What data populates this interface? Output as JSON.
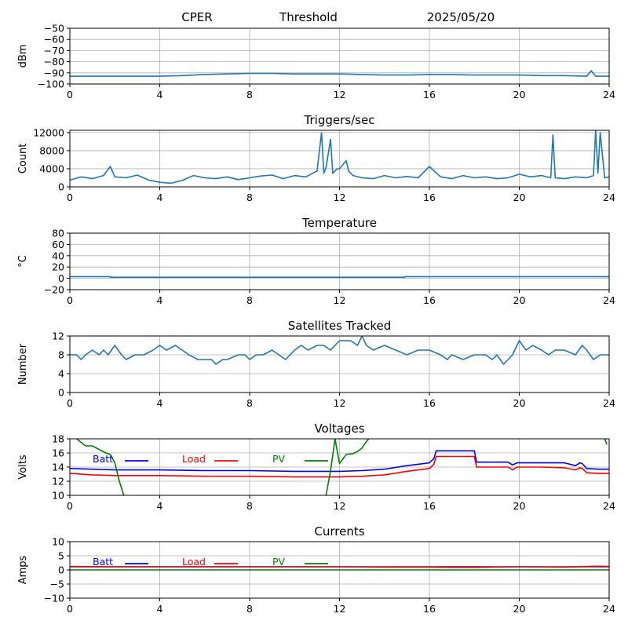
{
  "header": {
    "station": "CPER",
    "mode": "Threshold",
    "date": "2025/05/20"
  },
  "colors": {
    "series_default": "#1f77b4",
    "batt": "#0000ff",
    "load": "#ff0000",
    "pv": "#008000",
    "grid": "#b0b0b0"
  },
  "chart_data": [
    {
      "id": "threshold",
      "type": "line",
      "title": "",
      "ylabel": "dBm",
      "xlim": [
        0,
        24
      ],
      "xticks": [
        0,
        4,
        8,
        12,
        16,
        20,
        24
      ],
      "ylim": [
        -100,
        -50
      ],
      "yticks": [
        -100,
        -90,
        -80,
        -70,
        -60,
        -50
      ],
      "grid": true,
      "series": [
        {
          "color": "#1f77b4",
          "x": [
            0,
            1,
            2,
            3,
            4,
            5,
            6,
            7,
            8,
            9,
            10,
            11,
            12,
            13,
            14,
            15,
            16,
            17,
            18,
            19,
            20,
            21,
            22,
            23,
            23.2,
            23.4,
            23.6,
            24
          ],
          "y": [
            -93,
            -93,
            -93,
            -93,
            -93,
            -92.5,
            -91.5,
            -91,
            -90.5,
            -90.5,
            -91,
            -91,
            -91,
            -91.5,
            -92,
            -92,
            -91.5,
            -91.5,
            -92,
            -92,
            -92,
            -92.5,
            -92.5,
            -93,
            -88,
            -93,
            -93,
            -93
          ]
        }
      ]
    },
    {
      "id": "triggers",
      "type": "line",
      "title": "Triggers/sec",
      "ylabel": "Count",
      "xlim": [
        0,
        24
      ],
      "xticks": [
        0,
        4,
        8,
        12,
        16,
        20,
        24
      ],
      "ylim": [
        0,
        12500
      ],
      "yticks": [
        0,
        4000,
        8000,
        12000
      ],
      "grid": true,
      "series": [
        {
          "color": "#1f77b4",
          "x": [
            0,
            0.5,
            1,
            1.5,
            1.8,
            2,
            2.5,
            3,
            3.5,
            4,
            4.5,
            5,
            5.5,
            6,
            6.5,
            7,
            7.5,
            8,
            8.5,
            9,
            9.5,
            10,
            10.5,
            11,
            11.2,
            11.3,
            11.4,
            11.6,
            11.7,
            11.9,
            12,
            12.3,
            12.4,
            12.6,
            13,
            13.5,
            14,
            14.5,
            15,
            15.5,
            16,
            16.5,
            17,
            17.5,
            18,
            18.5,
            19,
            19.5,
            20,
            20.5,
            21,
            21.4,
            21.5,
            21.6,
            22,
            22.5,
            23,
            23.3,
            23.4,
            23.5,
            23.6,
            23.8,
            24
          ],
          "y": [
            1500,
            2200,
            1800,
            2500,
            4500,
            2200,
            2000,
            2600,
            1500,
            1000,
            800,
            1400,
            2500,
            2000,
            1800,
            2200,
            1600,
            2000,
            2400,
            2600,
            1800,
            2500,
            2200,
            3500,
            12000,
            3000,
            4200,
            10500,
            3000,
            4000,
            4000,
            5800,
            3500,
            2500,
            2000,
            1800,
            2500,
            2000,
            2300,
            2000,
            4500,
            2200,
            1800,
            2500,
            2000,
            2200,
            1800,
            2000,
            2800,
            2200,
            2500,
            2000,
            11500,
            2000,
            1800,
            2200,
            2000,
            2500,
            12500,
            3000,
            12000,
            2000,
            2200
          ]
        }
      ]
    },
    {
      "id": "temperature",
      "type": "line",
      "title": "Temperature",
      "ylabel": "°C",
      "xlim": [
        0,
        24
      ],
      "xticks": [
        0,
        4,
        8,
        12,
        16,
        20,
        24
      ],
      "ylim": [
        -20,
        80
      ],
      "yticks": [
        -20,
        0,
        20,
        40,
        60,
        80
      ],
      "grid": true,
      "series": [
        {
          "color": "#1f77b4",
          "x": [
            0,
            1.8,
            1.8,
            14.9,
            14.9,
            24
          ],
          "y": [
            3,
            3,
            2,
            2,
            3,
            3
          ]
        }
      ]
    },
    {
      "id": "satellites",
      "type": "line",
      "title": "Satellites Tracked",
      "ylabel": "Number",
      "xlim": [
        0,
        24
      ],
      "xticks": [
        0,
        4,
        8,
        12,
        16,
        20,
        24
      ],
      "ylim": [
        0,
        12
      ],
      "yticks": [
        0,
        4,
        8,
        12
      ],
      "grid": true,
      "series": [
        {
          "color": "#1f77b4",
          "x": [
            0,
            0.3,
            0.5,
            0.7,
            1,
            1.3,
            1.5,
            1.7,
            2,
            2.3,
            2.5,
            2.9,
            3.3,
            3.7,
            4,
            4.3,
            4.7,
            5,
            5.3,
            5.7,
            6,
            6.3,
            6.5,
            6.8,
            7,
            7.5,
            7.8,
            8,
            8.3,
            8.6,
            9,
            9.3,
            9.6,
            10,
            10.3,
            10.6,
            11,
            11.3,
            11.6,
            12,
            12.5,
            12.8,
            13,
            13.2,
            13.5,
            14,
            14.5,
            15,
            15.5,
            16,
            16.5,
            16.8,
            17,
            17.5,
            18,
            18.5,
            18.8,
            19,
            19.3,
            19.7,
            20,
            20.3,
            20.6,
            21,
            21.3,
            21.6,
            22,
            22.5,
            22.8,
            23,
            23.3,
            23.6,
            24
          ],
          "y": [
            8,
            8,
            7,
            8,
            9,
            8,
            9,
            8,
            10,
            8,
            7,
            8,
            8,
            9,
            10,
            9,
            10,
            9,
            8,
            7,
            7,
            7,
            6,
            7,
            7,
            8,
            8,
            7,
            8,
            8,
            9,
            8,
            7,
            9,
            10,
            9,
            10,
            10,
            9,
            11,
            11,
            10,
            12,
            10,
            9,
            10,
            9,
            8,
            9,
            9,
            8,
            7,
            8,
            7,
            8,
            8,
            7,
            8,
            6,
            8,
            11,
            9,
            10,
            9,
            8,
            9,
            9,
            8,
            10,
            9,
            7,
            8,
            8
          ]
        }
      ]
    },
    {
      "id": "voltages",
      "type": "line",
      "title": "Voltages",
      "ylabel": "Volts",
      "xlim": [
        0,
        24
      ],
      "xticks": [
        0,
        4,
        8,
        12,
        16,
        20,
        24
      ],
      "ylim": [
        10,
        18
      ],
      "yticks": [
        10,
        12,
        14,
        16,
        18
      ],
      "grid": true,
      "legend": [
        "Batt",
        "Load",
        "PV"
      ],
      "series": [
        {
          "name": "Batt",
          "color": "#0000ff",
          "x": [
            0,
            1,
            2,
            3,
            4,
            6,
            8,
            10,
            12,
            13,
            14,
            15,
            15.5,
            16,
            16.2,
            16.3,
            17,
            18,
            18.1,
            19,
            19.5,
            19.7,
            19.9,
            20,
            21,
            22,
            22.5,
            22.7,
            22.8,
            23,
            23.5,
            24
          ],
          "y": [
            13.8,
            13.7,
            13.6,
            13.6,
            13.6,
            13.5,
            13.5,
            13.4,
            13.4,
            13.5,
            13.7,
            14.2,
            14.4,
            14.6,
            15.2,
            16.3,
            16.3,
            16.3,
            14.7,
            14.7,
            14.7,
            14.3,
            14.6,
            14.6,
            14.6,
            14.6,
            14.2,
            14.6,
            14.5,
            13.8,
            13.7,
            13.7
          ]
        },
        {
          "name": "Load",
          "color": "#ff0000",
          "x": [
            0,
            1,
            2,
            3,
            4,
            6,
            8,
            10,
            12,
            13,
            14,
            15,
            15.5,
            16,
            16.2,
            16.3,
            17,
            18,
            18.1,
            19,
            19.5,
            19.7,
            19.9,
            20,
            21,
            22,
            22.5,
            22.7,
            22.8,
            23,
            23.5,
            24
          ],
          "y": [
            13.1,
            12.9,
            12.8,
            12.8,
            12.8,
            12.7,
            12.7,
            12.6,
            12.6,
            12.7,
            12.9,
            13.4,
            13.6,
            13.8,
            14.4,
            15.5,
            15.5,
            15.5,
            14.0,
            14.0,
            14.0,
            13.6,
            14.0,
            14.0,
            14.0,
            13.9,
            13.6,
            13.9,
            13.8,
            13.2,
            13.1,
            13.1
          ]
        },
        {
          "name": "PV",
          "color": "#008000",
          "segments": [
            {
              "x": [
                0.3,
                0.5,
                0.7,
                1,
                1.3,
                1.6,
                1.8,
                2,
                2.2,
                2.4
              ],
              "y": [
                18,
                17.5,
                17,
                17,
                16.5,
                16,
                15.8,
                14.6,
                12,
                10
              ]
            },
            {
              "x": [
                11.4,
                11.6,
                11.8,
                12,
                12.3,
                12.6,
                12.8,
                13,
                13.2,
                13.3
              ],
              "y": [
                10,
                13.5,
                18,
                14.5,
                15.8,
                15.9,
                16.2,
                16.7,
                17.6,
                18
              ]
            },
            {
              "x": [
                23.8,
                23.9
              ],
              "y": [
                18,
                17.2
              ]
            }
          ]
        }
      ]
    },
    {
      "id": "currents",
      "type": "line",
      "title": "Currents",
      "ylabel": "Amps",
      "xlim": [
        0,
        24
      ],
      "xticks": [
        0,
        4,
        8,
        12,
        16,
        20,
        24
      ],
      "ylim": [
        -10,
        10
      ],
      "yticks": [
        -10,
        -5,
        0,
        5,
        10
      ],
      "grid": true,
      "legend": [
        "Batt",
        "Load",
        "PV"
      ],
      "series": [
        {
          "name": "Batt",
          "color": "#0000ff",
          "x": [
            0,
            24
          ],
          "y": [
            1.1,
            1.1
          ]
        },
        {
          "name": "Load",
          "color": "#ff0000",
          "x": [
            0,
            2,
            4,
            6,
            8,
            10,
            12,
            14,
            16,
            17,
            18,
            20,
            22,
            23,
            23.5,
            24
          ],
          "y": [
            1.2,
            1.1,
            1.1,
            1.1,
            1.1,
            1.1,
            1.1,
            1.0,
            1.0,
            0.9,
            0.9,
            1.1,
            1.0,
            1.2,
            1.3,
            1.2
          ]
        },
        {
          "name": "PV",
          "color": "#008000",
          "x": [
            0,
            24
          ],
          "y": [
            0,
            0
          ]
        }
      ]
    }
  ]
}
